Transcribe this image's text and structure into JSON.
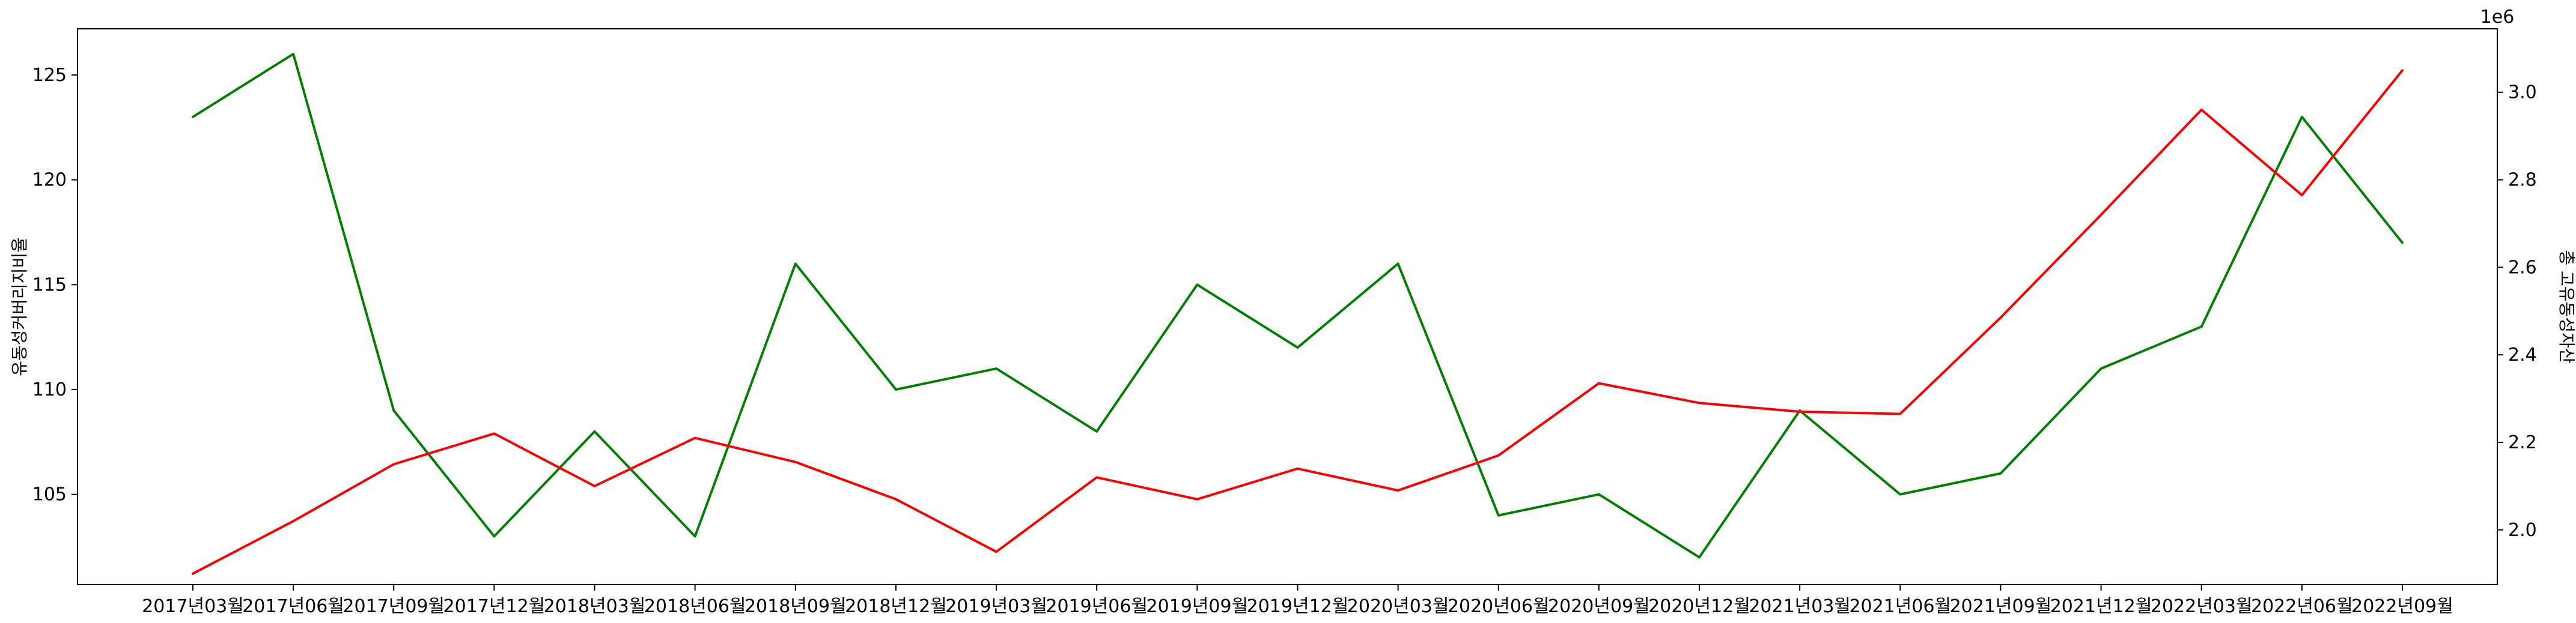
{
  "chart_data": {
    "type": "line",
    "categories": [
      "2017년03월",
      "2017년06월",
      "2017년09월",
      "2017년12월",
      "2018년03월",
      "2018년06월",
      "2018년09월",
      "2018년12월",
      "2019년03월",
      "2019년06월",
      "2019년09월",
      "2019년12월",
      "2020년03월",
      "2020년06월",
      "2020년09월",
      "2020년12월",
      "2021년03월",
      "2021년06월",
      "2021년09월",
      "2021년12월",
      "2022년03월",
      "2022년06월",
      "2022년09월"
    ],
    "ylabel": "유동성커버리지비율",
    "ylabel_right": "총 고유동성자산",
    "right_offset_label": "1e6",
    "ylim": [
      100.7,
      127.2
    ],
    "ylim_right": [
      1.875,
      3.145
    ],
    "yticks": [
      105,
      110,
      115,
      120,
      125
    ],
    "yticks_right": [
      2.0,
      2.2,
      2.4,
      2.6,
      2.8,
      3.0
    ],
    "yticks_right_labels": [
      "2.0",
      "2.2",
      "2.4",
      "2.6",
      "2.8",
      "3.0"
    ],
    "series": [
      {
        "axis": "left",
        "color": "#008000",
        "values": [
          123,
          126,
          109,
          103,
          108,
          103,
          116,
          110,
          111,
          108,
          115,
          112,
          116,
          104,
          105,
          102,
          109,
          105,
          106,
          111,
          113,
          123,
          117
        ]
      },
      {
        "axis": "right",
        "color": "#ff0000",
        "values": [
          1.9,
          2.02,
          2.15,
          2.22,
          2.1,
          2.21,
          2.155,
          2.07,
          1.95,
          2.12,
          2.07,
          2.14,
          2.09,
          2.17,
          2.335,
          2.29,
          2.27,
          2.265,
          2.485,
          2.72,
          2.96,
          2.765,
          3.05
        ]
      }
    ]
  }
}
